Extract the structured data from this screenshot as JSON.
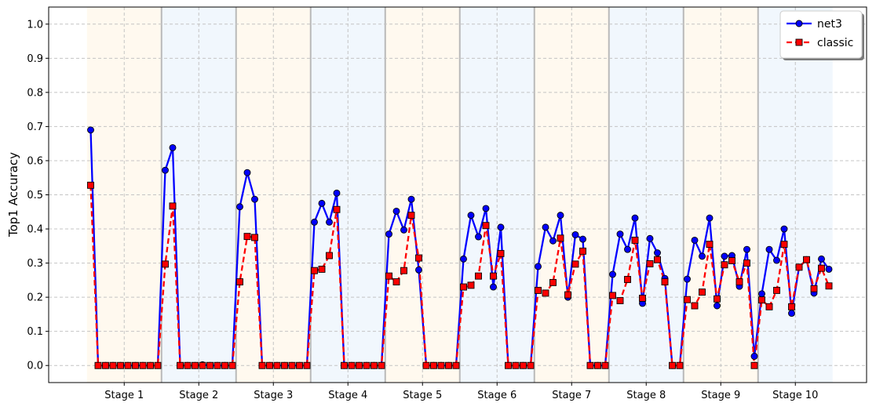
{
  "chart_data": {
    "type": "line",
    "title": "",
    "xlabel": "",
    "ylabel": "Top1 Accuracy",
    "ylim": [
      -0.05,
      1.05
    ],
    "yticks": [
      "0.0",
      "0.1",
      "0.2",
      "0.3",
      "0.4",
      "0.5",
      "0.6",
      "0.7",
      "0.8",
      "0.9",
      "1.0"
    ],
    "grid": true,
    "legend_position": "top-right",
    "stages": [
      "Stage 1",
      "Stage 2",
      "Stage 3",
      "Stage 4",
      "Stage 5",
      "Stage 6",
      "Stage 7",
      "Stage 8",
      "Stage 9",
      "Stage 10"
    ],
    "stage_colors": [
      "#fff9ef",
      "#f1f7fd"
    ],
    "series": [
      {
        "name": "net3",
        "color": "#0000ff",
        "linestyle": "solid",
        "marker": "circle",
        "values": [
          0.69,
          0,
          0,
          0,
          0,
          0,
          0,
          0,
          0,
          0,
          0.572,
          0.638,
          0,
          0,
          0,
          0.002,
          0,
          0,
          0,
          0,
          0.465,
          0.565,
          0.487,
          0,
          0,
          0,
          0,
          0,
          0,
          0,
          0.42,
          0.475,
          0.42,
          0.505,
          0,
          0,
          0,
          0,
          0,
          0,
          0.385,
          0.452,
          0.397,
          0.487,
          0.28,
          0,
          0,
          0,
          0,
          0,
          0.312,
          0.44,
          0.377,
          0.46,
          0.23,
          0.405,
          0,
          0,
          0,
          0,
          0.29,
          0.405,
          0.365,
          0.44,
          0.2,
          0.383,
          0.37,
          0,
          0,
          0,
          0.267,
          0.385,
          0.34,
          0.432,
          0.182,
          0.372,
          0.33,
          0.255,
          0,
          0,
          0.253,
          0.367,
          0.32,
          0.432,
          0.175,
          0.32,
          0.322,
          0.232,
          0.34,
          0.027,
          0.21,
          0.34,
          0.308,
          0.4,
          0.153,
          0.288,
          0.31,
          0.212,
          0.312,
          0.282
        ]
      },
      {
        "name": "classic",
        "color": "#ff0000",
        "linestyle": "dashed",
        "marker": "square",
        "values": [
          0.528,
          0,
          0,
          0,
          0,
          0,
          0,
          0,
          0,
          0,
          0.297,
          0.467,
          0,
          0,
          0,
          0,
          0,
          0,
          0,
          0,
          0.245,
          0.378,
          0.375,
          0,
          0,
          0,
          0,
          0,
          0,
          0,
          0.278,
          0.282,
          0.322,
          0.457,
          0,
          0,
          0,
          0,
          0,
          0,
          0.262,
          0.245,
          0.278,
          0.44,
          0.315,
          0,
          0,
          0,
          0,
          0,
          0.23,
          0.235,
          0.262,
          0.41,
          0.262,
          0.328,
          0,
          0,
          0,
          0,
          0.22,
          0.212,
          0.243,
          0.373,
          0.207,
          0.297,
          0.335,
          0,
          0,
          0,
          0.205,
          0.19,
          0.252,
          0.367,
          0.197,
          0.298,
          0.31,
          0.245,
          0,
          0,
          0.193,
          0.175,
          0.215,
          0.355,
          0.195,
          0.295,
          0.307,
          0.245,
          0.3,
          0,
          0.192,
          0.172,
          0.22,
          0.355,
          0.172,
          0.288,
          0.31,
          0.225,
          0.285,
          0.233
        ]
      }
    ]
  }
}
